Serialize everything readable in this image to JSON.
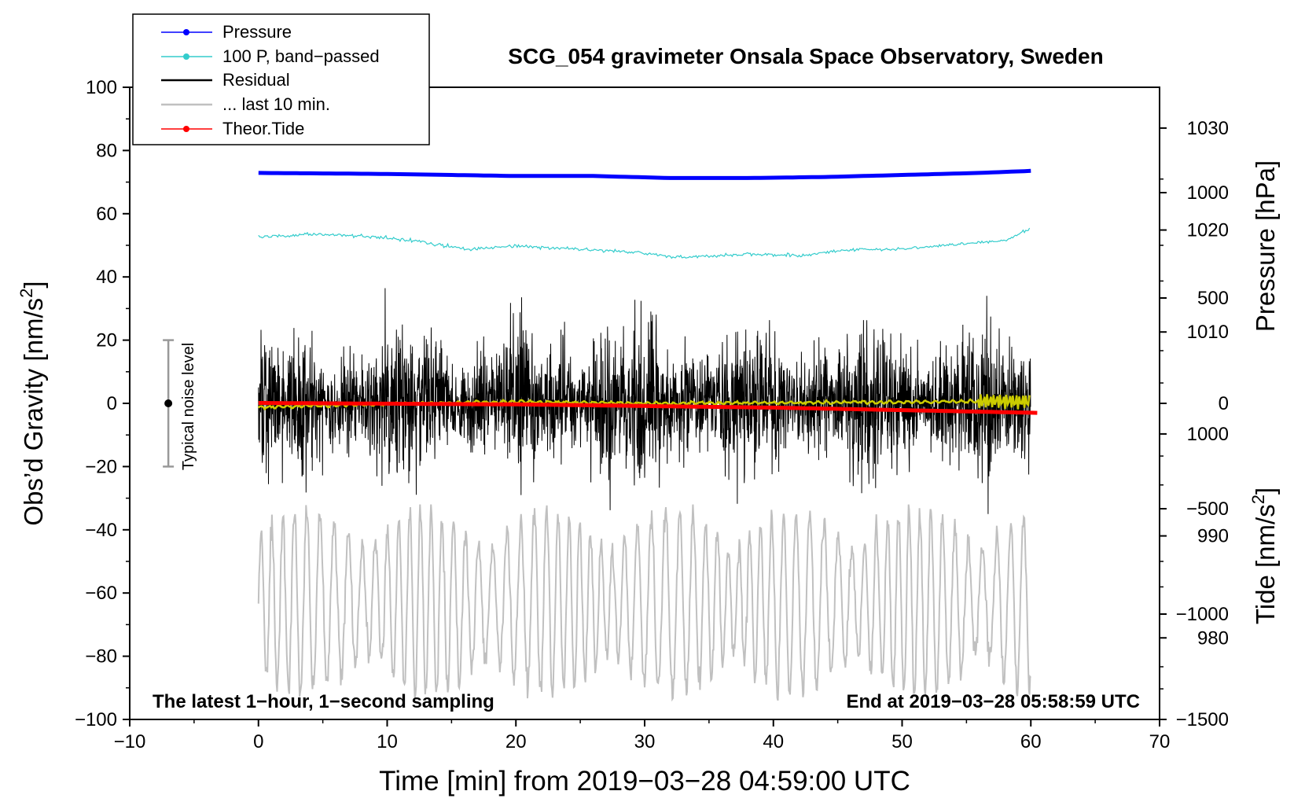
{
  "chart_data": {
    "type": "line",
    "title": "SCG_054 gravimeter Onsala Space Observatory, Sweden",
    "xlabel": "Time [min] from 2019−03−28 04:59:00 UTC",
    "ylabel_left_main": "Obs’d Gravity [nm/s",
    "ylabel_left_sup": "2",
    "ylabel_left_end": "]",
    "ylabel_right_top": "Pressure [hPa]",
    "ylabel_right_bottom_main": "Tide [nm/s",
    "ylabel_right_bottom_sup": "2",
    "ylabel_right_bottom_end": "]",
    "xlim": [
      -10,
      70
    ],
    "ylim": [
      -100,
      100
    ],
    "pressure_axis_range": [
      972,
      1034
    ],
    "tide_axis_range": [
      -1500,
      1500
    ],
    "x_ticks": [
      "−10",
      "0",
      "10",
      "20",
      "30",
      "40",
      "50",
      "60",
      "70"
    ],
    "y_ticks": [
      "−100",
      "−80",
      "−60",
      "−40",
      "−20",
      "0",
      "20",
      "40",
      "60",
      "80",
      "100"
    ],
    "pressure_ticks": [
      "980",
      "990",
      "1000",
      "1010",
      "1020",
      "1030"
    ],
    "tide_ticks": [
      "−1500",
      "−1000",
      "−500",
      "0",
      "500",
      "1000"
    ],
    "noise_label": "Typical noise level",
    "noise_bar": {
      "x": -7,
      "center": 0,
      "low": -20,
      "high": 20
    },
    "note_left": "The latest 1−hour, 1−second sampling",
    "note_right": "End at 2019−03−28 05:58:59 UTC",
    "legend": {
      "pressure": "Pressure",
      "bandpassed": "100 P, band−passed",
      "residual": "Residual",
      "last10": "... last 10 min.",
      "tide": "Theor.Tide"
    },
    "colors": {
      "pressure": "#0000ff",
      "bandpassed": "#33cccc",
      "residual": "#000000",
      "residual_smooth": "#cccc00",
      "last10": "#c0c0c0",
      "tide": "#ff0000"
    },
    "series": [
      {
        "name": "Pressure",
        "axis": "pressure_hPa",
        "x": [
          0,
          10,
          20,
          26,
          32,
          38,
          44,
          50,
          56,
          60
        ],
        "values": [
          1025.6,
          1025.5,
          1025.3,
          1025.3,
          1025.1,
          1025.1,
          1025.2,
          1025.4,
          1025.6,
          1025.8
        ]
      },
      {
        "name": "100 P, band−passed",
        "axis": "gravity_nm_s2",
        "x": [
          0,
          4,
          8,
          12,
          16,
          20,
          24,
          28,
          33,
          38,
          42,
          46,
          50,
          54,
          58,
          60
        ],
        "values": [
          52.6,
          53.5,
          53.0,
          51.5,
          48.8,
          49.8,
          49.0,
          48.2,
          46.2,
          47.2,
          46.8,
          48.6,
          48.8,
          50.2,
          51.5,
          55.5
        ]
      },
      {
        "name": "Residual",
        "axis": "gravity_nm_s2",
        "x_range": [
          0,
          60
        ],
        "mean": 0,
        "approx_range": [
          -35,
          37
        ]
      },
      {
        "name": "Residual (smoothed)",
        "axis": "gravity_nm_s2",
        "x": [
          0,
          10,
          20,
          30,
          40,
          50,
          58,
          60
        ],
        "values": [
          -1.2,
          -0.2,
          0.5,
          0.0,
          0.2,
          0.4,
          0.8,
          0.5
        ]
      },
      {
        "name": "... last 10 min.",
        "axis": "gravity_nm_s2",
        "x_range": [
          0,
          60
        ],
        "center": -63,
        "approx_range": [
          -97,
          -32
        ]
      },
      {
        "name": "Theor.Tide",
        "axis": "tide_nm_s2",
        "x": [
          0,
          20,
          40,
          60.5
        ],
        "values": [
          2,
          -5,
          -20,
          -45
        ]
      }
    ]
  }
}
